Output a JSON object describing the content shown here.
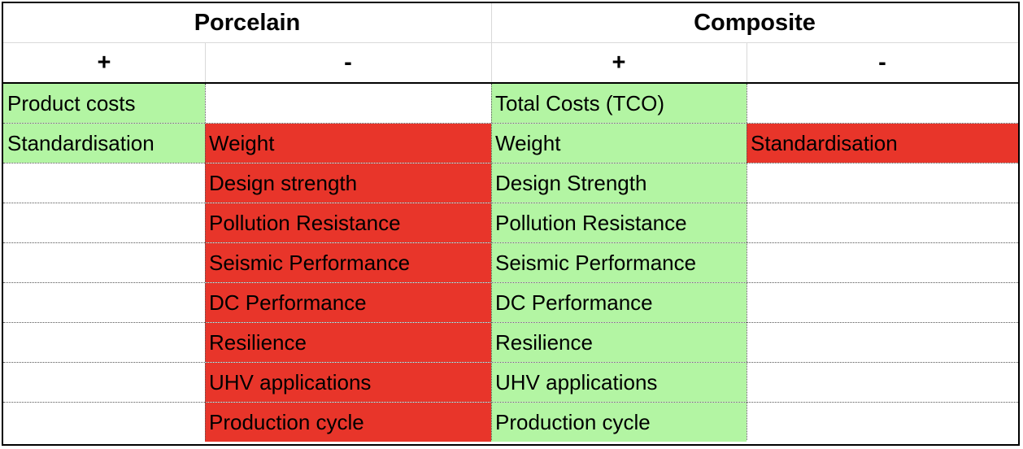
{
  "headers": {
    "porcelain": "Porcelain",
    "composite": "Composite",
    "porcelain_plus": "+",
    "porcelain_minus": "-",
    "composite_plus": "+",
    "composite_minus": "-"
  },
  "rows": [
    {
      "p_plus": "Product costs",
      "p_minus": "",
      "c_plus": "Total Costs (TCO)",
      "c_minus": ""
    },
    {
      "p_plus": "Standardisation",
      "p_minus": "Weight",
      "c_plus": "Weight",
      "c_minus": "Standardisation"
    },
    {
      "p_plus": "",
      "p_minus": "Design strength",
      "c_plus": "Design Strength",
      "c_minus": ""
    },
    {
      "p_plus": "",
      "p_minus": "Pollution Resistance",
      "c_plus": "Pollution Resistance",
      "c_minus": ""
    },
    {
      "p_plus": "",
      "p_minus": "Seismic Performance",
      "c_plus": "Seismic Performance",
      "c_minus": ""
    },
    {
      "p_plus": "",
      "p_minus": "DC Performance",
      "c_plus": "DC Performance",
      "c_minus": ""
    },
    {
      "p_plus": "",
      "p_minus": "Resilience",
      "c_plus": "Resilience",
      "c_minus": ""
    },
    {
      "p_plus": "",
      "p_minus": "UHV applications",
      "c_plus": "UHV applications",
      "c_minus": ""
    },
    {
      "p_plus": "",
      "p_minus": "Production cycle",
      "c_plus": "Production cycle",
      "c_minus": ""
    }
  ],
  "colors": {
    "positive": "#b3f5a3",
    "negative": "#e8352a"
  }
}
